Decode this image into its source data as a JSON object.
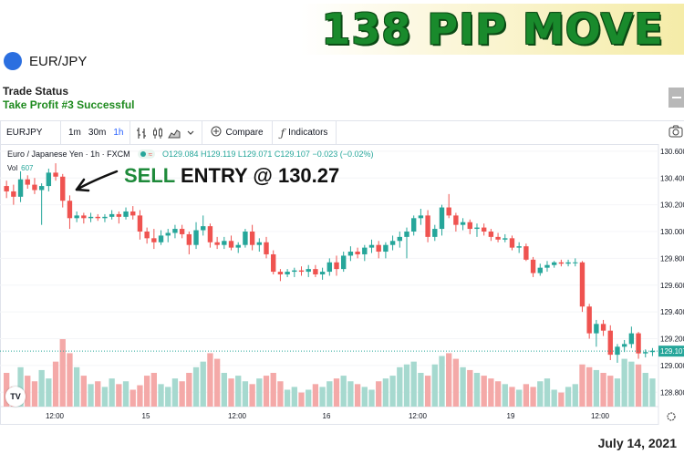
{
  "headline": "138 PIP MOVE",
  "symbol": "EUR/JPY",
  "trade_status": {
    "label": "Trade Status",
    "value": "Take Profit #3 Successful"
  },
  "toolbar": {
    "symbol": "EURJPY",
    "intervals": [
      "1m",
      "30m",
      "1h"
    ],
    "active_interval": "1h",
    "compare_label": "Compare",
    "indicators_label": "Indicators"
  },
  "legend": {
    "title": "Euro / Japanese Yen · 1h · FXCM",
    "ohlc": "O129.084 H129.119 L129.071 C129.107 −0.023 (−0.02%)",
    "vol_label": "Vol",
    "vol_value": "607"
  },
  "annotation": {
    "sell": "SELL",
    "rest": " ENTRY @ 130.27"
  },
  "footer_date": "July 14, 2021",
  "colors": {
    "up": "#26a69a",
    "down": "#ef5350",
    "up_vol": "#a6d9cf",
    "down_vol": "#f4a9a8",
    "accent": "#2962ff"
  },
  "chart_data": {
    "type": "candlestick",
    "price_axis_ticks": [
      "130.600",
      "130.400",
      "130.200",
      "130.000",
      "129.800",
      "129.600",
      "129.400",
      "129.200",
      "129.000",
      "128.800"
    ],
    "current_price": "129.107",
    "x_tick_labels": [
      "12:00",
      "15",
      "12:00",
      "16",
      "12:00",
      "19",
      "12:00"
    ],
    "ylim": [
      128.72,
      130.64
    ],
    "candles": [
      [
        130.34,
        130.38,
        130.25,
        130.3
      ],
      [
        130.3,
        130.35,
        130.2,
        130.26
      ],
      [
        130.26,
        130.45,
        130.22,
        130.39
      ],
      [
        130.39,
        130.42,
        130.32,
        130.35
      ],
      [
        130.35,
        130.4,
        130.28,
        130.31
      ],
      [
        130.31,
        130.36,
        130.05,
        130.34
      ],
      [
        130.34,
        130.47,
        130.3,
        130.44
      ],
      [
        130.44,
        130.51,
        130.38,
        130.41
      ],
      [
        130.41,
        130.43,
        130.18,
        130.23
      ],
      [
        130.23,
        130.27,
        130.02,
        130.1
      ],
      [
        130.1,
        130.15,
        130.07,
        130.12
      ],
      [
        130.12,
        130.14,
        130.06,
        130.1
      ],
      [
        130.1,
        130.14,
        130.07,
        130.11
      ],
      [
        130.11,
        130.13,
        130.08,
        130.1
      ],
      [
        130.1,
        130.13,
        130.07,
        130.11
      ],
      [
        130.11,
        130.16,
        130.09,
        130.13
      ],
      [
        130.13,
        130.15,
        130.06,
        130.11
      ],
      [
        130.11,
        130.18,
        130.09,
        130.15
      ],
      [
        130.15,
        130.19,
        130.09,
        130.12
      ],
      [
        130.12,
        130.16,
        129.94,
        130.0
      ],
      [
        130.0,
        130.03,
        129.91,
        129.95
      ],
      [
        129.95,
        130.02,
        129.87,
        129.92
      ],
      [
        129.92,
        130.01,
        129.9,
        129.97
      ],
      [
        129.97,
        130.02,
        129.92,
        129.99
      ],
      [
        129.99,
        130.05,
        129.95,
        130.02
      ],
      [
        130.02,
        130.05,
        129.95,
        129.98
      ],
      [
        129.98,
        130.0,
        129.83,
        129.9
      ],
      [
        129.9,
        130.07,
        129.87,
        130.01
      ],
      [
        130.01,
        130.12,
        129.97,
        130.04
      ],
      [
        130.04,
        130.06,
        129.88,
        129.92
      ],
      [
        129.92,
        129.96,
        129.87,
        129.9
      ],
      [
        129.9,
        129.96,
        129.87,
        129.93
      ],
      [
        129.93,
        129.97,
        129.86,
        129.88
      ],
      [
        129.88,
        129.92,
        129.84,
        129.9
      ],
      [
        129.9,
        130.02,
        129.88,
        130.0
      ],
      [
        130.0,
        130.05,
        129.86,
        129.9
      ],
      [
        129.9,
        129.95,
        129.85,
        129.92
      ],
      [
        129.92,
        129.96,
        129.8,
        129.83
      ],
      [
        129.83,
        129.86,
        129.68,
        129.7
      ],
      [
        129.7,
        129.72,
        129.63,
        129.68
      ],
      [
        129.68,
        129.72,
        129.66,
        129.7
      ],
      [
        129.7,
        129.73,
        129.66,
        129.71
      ],
      [
        129.71,
        129.74,
        129.67,
        129.7
      ],
      [
        129.7,
        129.75,
        129.66,
        129.72
      ],
      [
        129.72,
        129.75,
        129.66,
        129.68
      ],
      [
        129.68,
        129.73,
        129.64,
        129.7
      ],
      [
        129.7,
        129.8,
        129.67,
        129.77
      ],
      [
        129.77,
        129.82,
        129.67,
        129.72
      ],
      [
        129.72,
        129.85,
        129.7,
        129.82
      ],
      [
        129.82,
        129.89,
        129.78,
        129.85
      ],
      [
        129.85,
        129.88,
        129.8,
        129.83
      ],
      [
        129.83,
        129.9,
        129.78,
        129.88
      ],
      [
        129.88,
        129.94,
        129.84,
        129.9
      ],
      [
        129.9,
        129.93,
        129.8,
        129.85
      ],
      [
        129.85,
        129.92,
        129.8,
        129.9
      ],
      [
        129.9,
        129.97,
        129.86,
        129.93
      ],
      [
        129.93,
        130.0,
        129.88,
        129.96
      ],
      [
        129.96,
        130.03,
        129.8,
        130.0
      ],
      [
        130.0,
        130.12,
        129.97,
        130.1
      ],
      [
        130.1,
        130.17,
        130.05,
        130.12
      ],
      [
        130.12,
        130.16,
        129.92,
        129.96
      ],
      [
        129.96,
        130.05,
        129.93,
        130.02
      ],
      [
        130.02,
        130.2,
        129.97,
        130.18
      ],
      [
        130.18,
        130.28,
        130.1,
        130.12
      ],
      [
        130.12,
        130.14,
        130.0,
        130.05
      ],
      [
        130.05,
        130.1,
        130.01,
        130.07
      ],
      [
        130.07,
        130.09,
        129.98,
        130.02
      ],
      [
        130.02,
        130.06,
        129.96,
        130.03
      ],
      [
        130.03,
        130.06,
        129.97,
        130.0
      ],
      [
        130.0,
        130.02,
        129.93,
        129.96
      ],
      [
        129.96,
        129.99,
        129.92,
        129.94
      ],
      [
        129.94,
        129.98,
        129.92,
        129.95
      ],
      [
        129.95,
        129.97,
        129.86,
        129.88
      ],
      [
        129.88,
        129.92,
        129.84,
        129.89
      ],
      [
        129.89,
        129.91,
        129.78,
        129.79
      ],
      [
        129.79,
        129.81,
        129.66,
        129.69
      ],
      [
        129.69,
        129.76,
        129.67,
        129.73
      ],
      [
        129.73,
        129.78,
        129.7,
        129.75
      ],
      [
        129.75,
        129.78,
        129.73,
        129.77
      ],
      [
        129.77,
        129.79,
        129.74,
        129.76
      ],
      [
        129.76,
        129.79,
        129.74,
        129.77
      ],
      [
        129.77,
        129.8,
        129.74,
        129.77
      ],
      [
        129.77,
        129.78,
        129.4,
        129.44
      ],
      [
        129.44,
        129.46,
        129.2,
        129.24
      ],
      [
        129.24,
        129.34,
        129.14,
        129.31
      ],
      [
        129.31,
        129.34,
        129.22,
        129.26
      ],
      [
        129.26,
        129.3,
        129.04,
        129.08
      ],
      [
        129.08,
        129.16,
        129.02,
        129.14
      ],
      [
        129.14,
        129.19,
        129.1,
        129.16
      ],
      [
        129.16,
        129.29,
        129.13,
        129.24
      ],
      [
        129.24,
        129.25,
        129.05,
        129.09
      ],
      [
        129.09,
        129.12,
        129.06,
        129.1
      ],
      [
        129.1,
        129.13,
        129.07,
        129.11
      ]
    ],
    "volumes": [
      60,
      35,
      70,
      55,
      45,
      65,
      50,
      80,
      120,
      95,
      70,
      55,
      40,
      45,
      35,
      50,
      40,
      45,
      30,
      38,
      55,
      60,
      40,
      35,
      50,
      45,
      60,
      70,
      80,
      95,
      85,
      60,
      50,
      55,
      45,
      40,
      50,
      55,
      60,
      45,
      30,
      35,
      25,
      30,
      40,
      35,
      45,
      50,
      55,
      45,
      40,
      35,
      30,
      45,
      50,
      55,
      70,
      75,
      80,
      60,
      55,
      75,
      90,
      95,
      85,
      70,
      65,
      60,
      55,
      50,
      45,
      40,
      35,
      30,
      40,
      35,
      45,
      50,
      30,
      25,
      35,
      40,
      75,
      70,
      65,
      60,
      55,
      50,
      85,
      80,
      75,
      60,
      50
    ]
  }
}
